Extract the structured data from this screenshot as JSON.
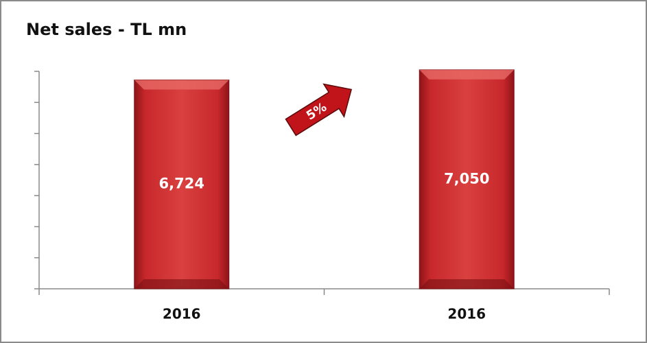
{
  "chart_data": {
    "type": "bar",
    "title": "Net sales - TL mn",
    "categories": [
      "2016",
      "2016"
    ],
    "values": [
      6724,
      7050
    ],
    "value_labels": [
      "6,724",
      "7,050"
    ],
    "color": "#c8282c",
    "ylim": [
      0,
      7000
    ],
    "yticks": [
      0,
      1000,
      2000,
      3000,
      4000,
      5000,
      6000,
      7000
    ],
    "annotation": "5%"
  }
}
